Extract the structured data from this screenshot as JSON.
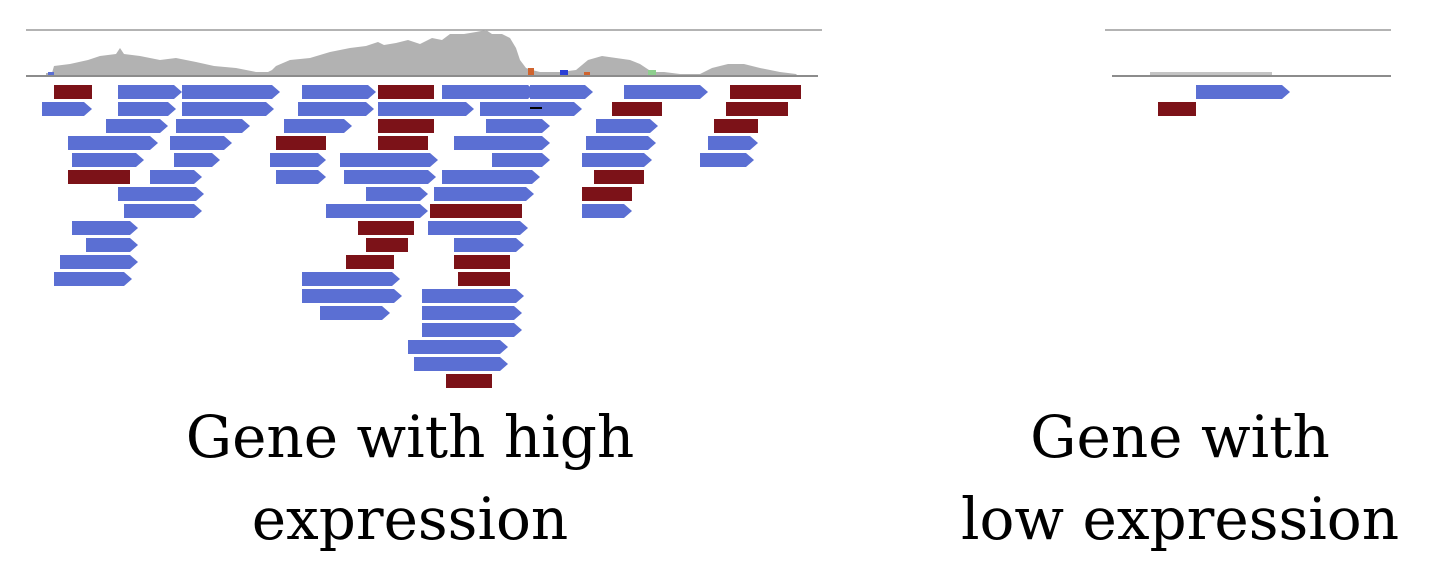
{
  "panels": {
    "high": {
      "caption_line1": "Gene with high",
      "caption_line2": "expression",
      "expression": "high"
    },
    "low": {
      "caption_line1": "Gene with",
      "caption_line2": "low expression",
      "expression": "low"
    }
  },
  "colors": {
    "forward_read": "#5b6fd3",
    "reverse_read": "#7c1218",
    "coverage": "#b2b2b2",
    "axis_line": "#9a9a9a",
    "baseline": "#8c8c8c"
  }
}
